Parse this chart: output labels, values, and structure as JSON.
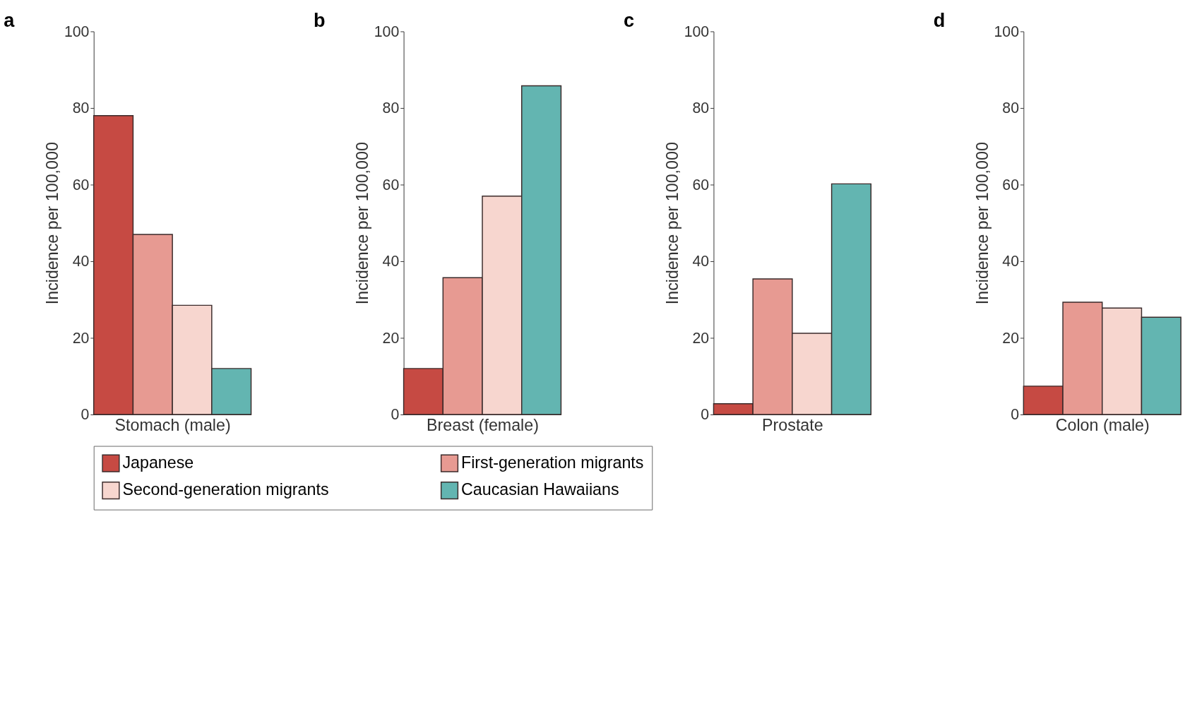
{
  "chart_data": [
    {
      "type": "bar",
      "title": "a",
      "xlabel": "Stomach (male)",
      "ylabel": "Incidence per 100,000",
      "categories": [
        null
      ],
      "ylim": [
        0,
        100
      ],
      "yticks": [
        0,
        20,
        40,
        60,
        80,
        100
      ],
      "grid": false,
      "legend": "bottom",
      "series": [
        {
          "name": "Japanese",
          "color": "#c64a43",
          "values": [
            78
          ]
        },
        {
          "name": "First-generation migrants",
          "color": "#e79a92",
          "values": [
            47
          ]
        },
        {
          "name": "Second-generation migrants",
          "color": "#f7d6cf",
          "values": [
            28.5
          ]
        },
        {
          "name": "Caucasian Hawaiians",
          "color": "#63b5b1",
          "values": [
            12
          ]
        }
      ]
    },
    {
      "type": "bar",
      "title": "b",
      "xlabel": "Breast (female)",
      "ylabel": "Incidence per 100,000",
      "categories": [
        null
      ],
      "ylim": [
        0,
        100
      ],
      "yticks": [
        0,
        20,
        40,
        60,
        80,
        100
      ],
      "grid": false,
      "series": [
        {
          "name": "Japanese",
          "color": "#c64a43",
          "values": [
            12
          ]
        },
        {
          "name": "First-generation migrants",
          "color": "#e79a92",
          "values": [
            35.7
          ]
        },
        {
          "name": "Second-generation migrants",
          "color": "#f7d6cf",
          "values": [
            57
          ]
        },
        {
          "name": "Caucasian Hawaiians",
          "color": "#63b5b1",
          "values": [
            85.8
          ]
        }
      ]
    },
    {
      "type": "bar",
      "title": "c",
      "xlabel": "Prostate",
      "ylabel": "Incidence per 100,000",
      "categories": [
        null
      ],
      "ylim": [
        0,
        100
      ],
      "yticks": [
        0,
        20,
        40,
        60,
        80,
        100
      ],
      "grid": false,
      "series": [
        {
          "name": "Japanese",
          "color": "#c64a43",
          "values": [
            2.8
          ]
        },
        {
          "name": "First-generation migrants",
          "color": "#e79a92",
          "values": [
            35.4
          ]
        },
        {
          "name": "Second-generation migrants",
          "color": "#f7d6cf",
          "values": [
            21.2
          ]
        },
        {
          "name": "Caucasian Hawaiians",
          "color": "#63b5b1",
          "values": [
            60.2
          ]
        }
      ]
    },
    {
      "type": "bar",
      "title": "d",
      "xlabel": "Colon (male)",
      "ylabel": "Incidence per 100,000",
      "categories": [
        null
      ],
      "ylim": [
        0,
        100
      ],
      "yticks": [
        0,
        20,
        40,
        60,
        80,
        100
      ],
      "grid": false,
      "series": [
        {
          "name": "Japanese",
          "color": "#c64a43",
          "values": [
            7.4
          ]
        },
        {
          "name": "First-generation migrants",
          "color": "#e79a92",
          "values": [
            29.3
          ]
        },
        {
          "name": "Second-generation migrants",
          "color": "#f7d6cf",
          "values": [
            27.8
          ]
        },
        {
          "name": "Caucasian Hawaiians",
          "color": "#63b5b1",
          "values": [
            25.4
          ]
        }
      ]
    }
  ]
}
